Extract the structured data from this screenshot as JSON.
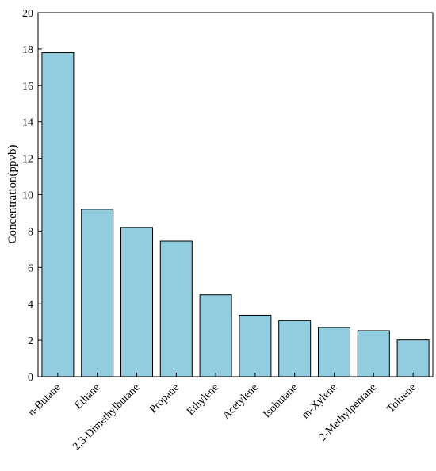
{
  "chart_data": {
    "type": "bar",
    "title": "",
    "xlabel": "",
    "ylabel": "Concentration(ppvb)",
    "ylim": [
      0,
      20
    ],
    "yticks": [
      0,
      2,
      4,
      6,
      8,
      10,
      12,
      14,
      16,
      18,
      20
    ],
    "grid": false,
    "legend": "none",
    "bar_color": "#92cddf",
    "categories": [
      "n-Butane",
      "Ethane",
      "2,3-Dimethylbutane",
      "Propane",
      "Ethylene",
      "Acetylene",
      "Isobutane",
      "m-Xylene",
      "2-Methylpentane",
      "Toluene"
    ],
    "values": [
      17.8,
      9.2,
      8.2,
      7.45,
      4.5,
      3.38,
      3.08,
      2.7,
      2.53,
      2.02
    ]
  }
}
